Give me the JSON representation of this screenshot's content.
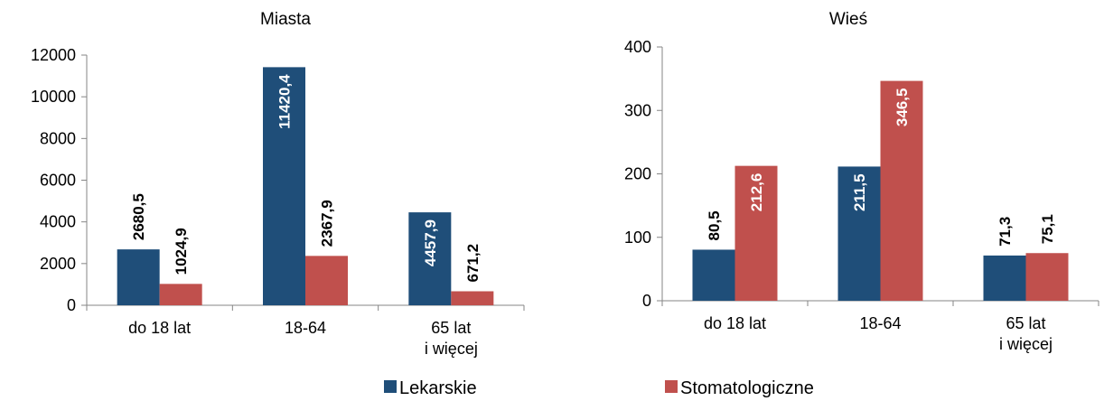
{
  "colors": {
    "lekarskie": "#1f4e79",
    "stomatologiczne": "#c0504d"
  },
  "legend": [
    {
      "name": "Lekarskie",
      "color": "#1f4e79"
    },
    {
      "name": "Stomatologiczne",
      "color": "#c0504d"
    }
  ],
  "chart_data": [
    {
      "type": "bar",
      "title": "Miasta",
      "categories": [
        [
          "do 18 lat"
        ],
        [
          "18-64"
        ],
        [
          "65 lat",
          "i więcej"
        ]
      ],
      "ylim": [
        0,
        12000
      ],
      "yticks": [
        0,
        2000,
        4000,
        6000,
        8000,
        10000,
        12000
      ],
      "ytick_labels": [
        "0",
        "2000",
        "4000",
        "6000",
        "8000",
        "10000",
        "12000"
      ],
      "series": [
        {
          "name": "Lekarskie",
          "values": [
            2680.5,
            11420.4,
            4457.9
          ],
          "labels": [
            "2680,5",
            "11420,4",
            "4457,9"
          ]
        },
        {
          "name": "Stomatologiczne",
          "values": [
            1024.9,
            2367.9,
            671.2
          ],
          "labels": [
            "1024,9",
            "2367,9",
            "671,2"
          ]
        }
      ]
    },
    {
      "type": "bar",
      "title": "Wieś",
      "categories": [
        [
          "do 18 lat"
        ],
        [
          "18-64"
        ],
        [
          "65 lat",
          "i więcej"
        ]
      ],
      "ylim": [
        0,
        400
      ],
      "yticks": [
        0,
        100,
        200,
        300,
        400
      ],
      "ytick_labels": [
        "0",
        "100",
        "200",
        "300",
        "400"
      ],
      "series": [
        {
          "name": "Lekarskie",
          "values": [
            80.5,
            211.5,
            71.3
          ],
          "labels": [
            "80,5",
            "211,5",
            "71,3"
          ]
        },
        {
          "name": "Stomatologiczne",
          "values": [
            212.6,
            346.5,
            75.1
          ],
          "labels": [
            "212,6",
            "346,5",
            "75,1"
          ]
        }
      ]
    }
  ]
}
